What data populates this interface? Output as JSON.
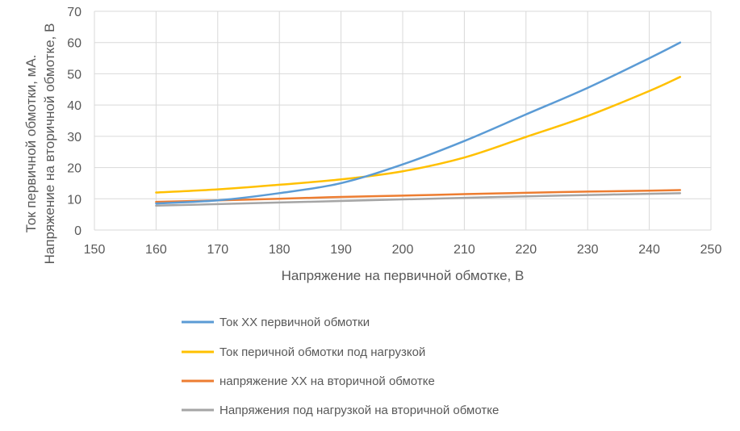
{
  "chart_data": {
    "type": "line",
    "title": "",
    "xlabel": "Напряжение на первичной обмотке, В",
    "ylabel_lines": [
      "Ток первичной обмотки, мА.",
      "Напряжение на вторичной обмотке, В"
    ],
    "xlim": [
      150,
      250
    ],
    "ylim": [
      0,
      70
    ],
    "xticks": [
      150,
      160,
      170,
      180,
      190,
      200,
      210,
      220,
      230,
      240,
      250
    ],
    "yticks": [
      0,
      10,
      20,
      30,
      40,
      50,
      60,
      70
    ],
    "grid": true,
    "legend_position": "bottom",
    "x": [
      160,
      170,
      180,
      190,
      200,
      210,
      220,
      230,
      240,
      245
    ],
    "series": [
      {
        "name": "Ток XX первичной обмотки",
        "color": "#5B9BD5",
        "values": [
          8.5,
          9.5,
          11.8,
          15,
          21,
          28.5,
          37,
          45.5,
          55,
          60
        ]
      },
      {
        "name": "Ток перичной обмотки под нагрузкой",
        "color": "#FFC000",
        "values": [
          12,
          13,
          14.5,
          16.2,
          18.8,
          23.2,
          29.8,
          36.5,
          44.5,
          49
        ]
      },
      {
        "name": "напряжение XX на вторичной обмотке",
        "color": "#ED7D31",
        "values": [
          9,
          9.5,
          10,
          10.6,
          11,
          11.5,
          11.9,
          12.3,
          12.6,
          12.8
        ]
      },
      {
        "name": "Напряжения под нагрузкой на вторичной обмотке",
        "color": "#A5A5A5",
        "values": [
          7.8,
          8.3,
          8.8,
          9.3,
          9.8,
          10.3,
          10.8,
          11.2,
          11.6,
          11.8
        ]
      }
    ]
  }
}
